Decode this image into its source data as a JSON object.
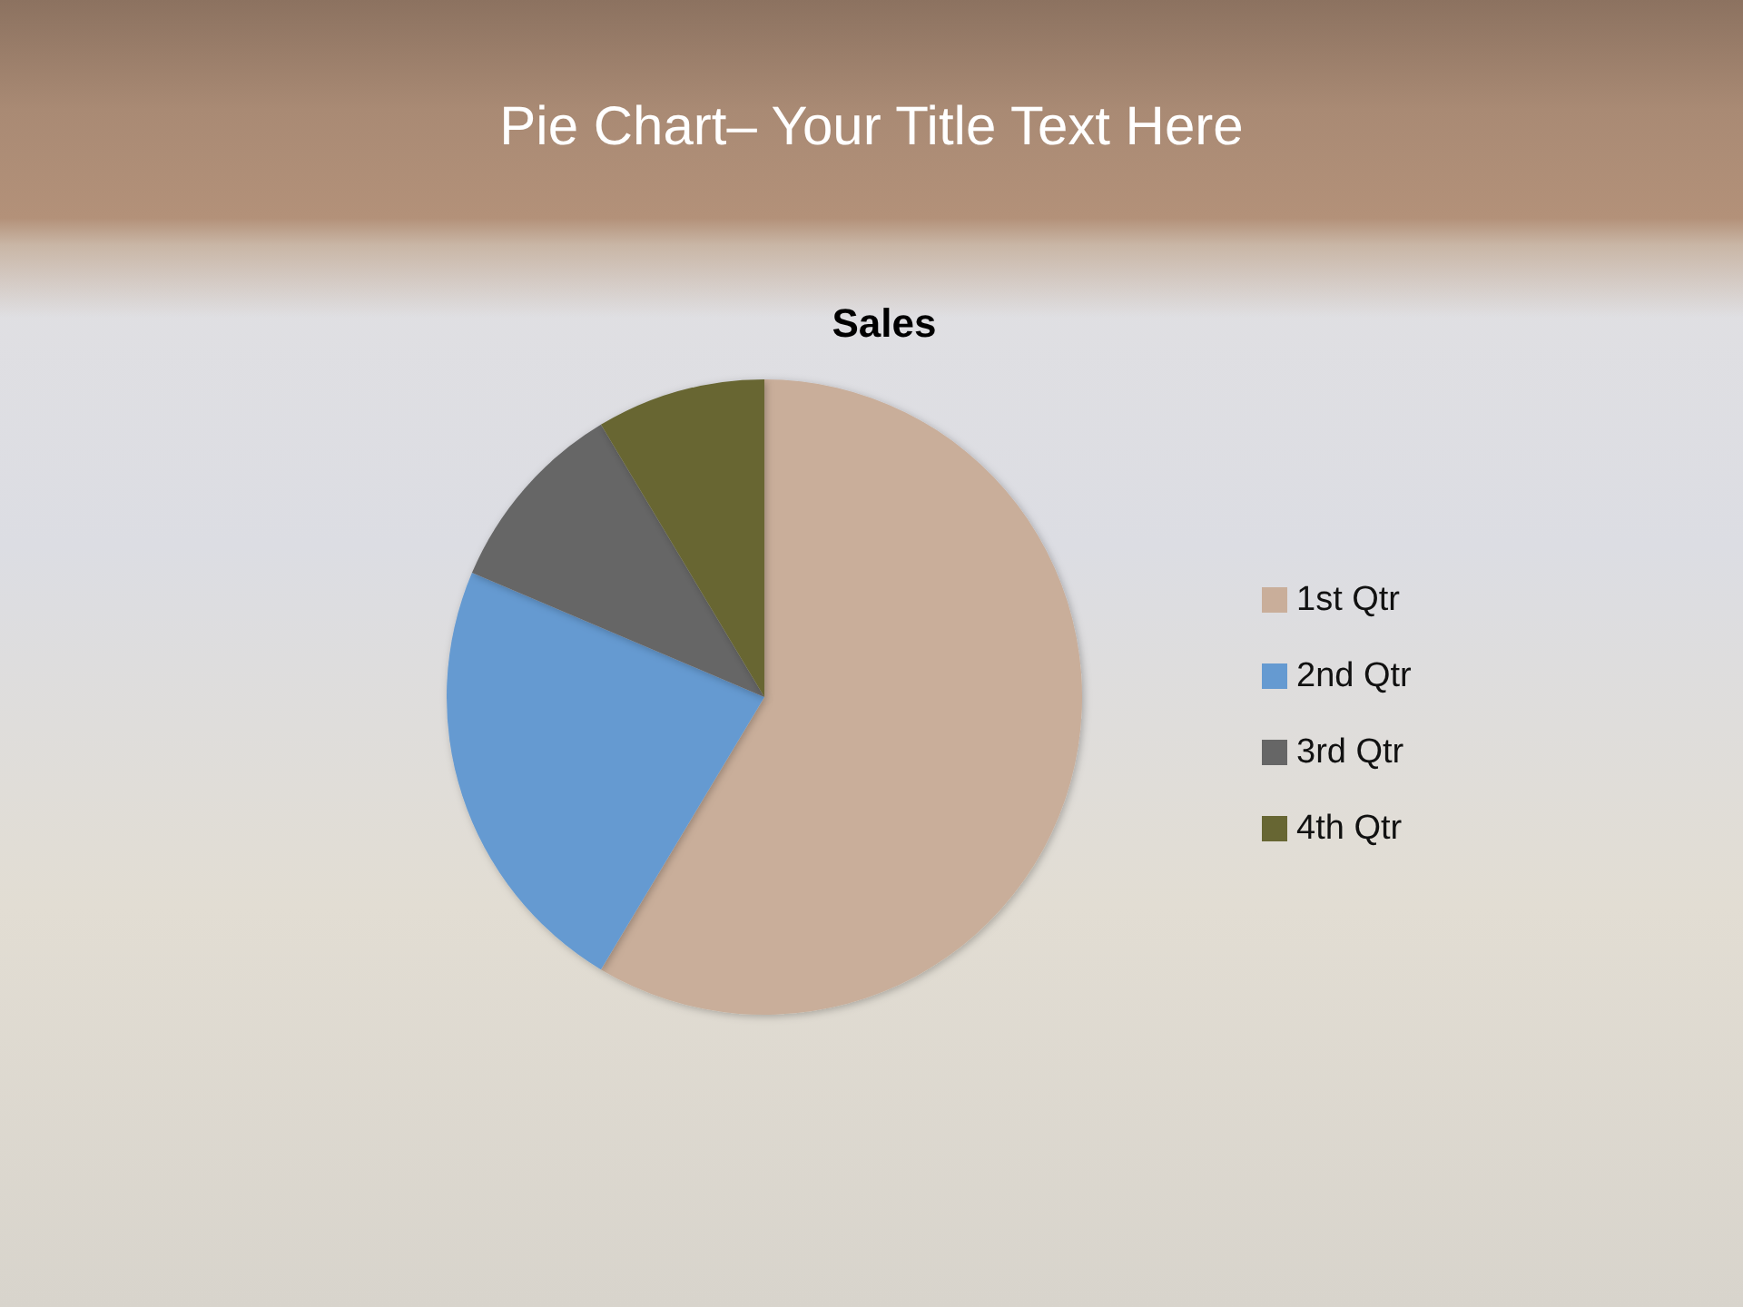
{
  "chart_data": {
    "type": "pie",
    "title": "Pie Chart– Your Title Text Here",
    "subtitle": "Sales",
    "categories": [
      "1st Qtr",
      "2nd Qtr",
      "3rd Qtr",
      "4th Qtr"
    ],
    "values": [
      58.6,
      22.8,
      10.0,
      8.6
    ],
    "colors": [
      "#c9ae9a",
      "#659ad1",
      "#666666",
      "#676633"
    ],
    "legend": "right"
  }
}
